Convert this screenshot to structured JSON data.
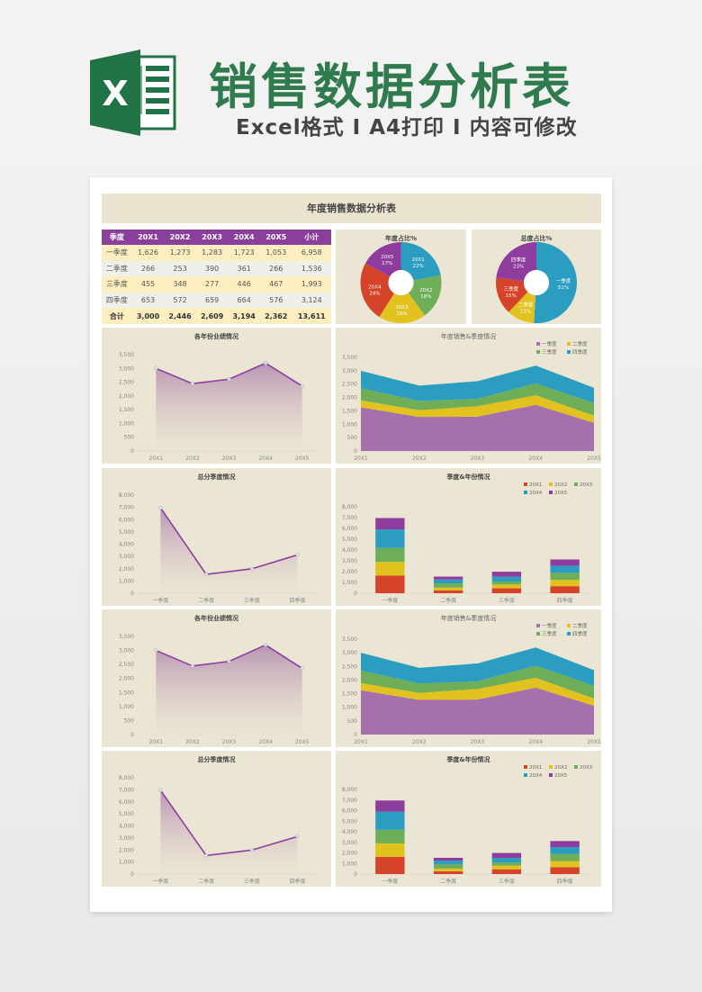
{
  "header": {
    "title": "销售数据分析表",
    "subtitle": "Excel格式 I A4打印 I 内容可修改",
    "logo_letter": "X"
  },
  "sheet_title": "年度销售数据分析表",
  "colors": {
    "brand": "#2f7b4d",
    "header_purple": "#8a3f9c",
    "blue": "#2a9dc0",
    "green": "#6fae58",
    "yellow": "#e2c21f",
    "red": "#d4432a",
    "purple": "#8e3d9e",
    "area_purple": "#a670ac",
    "panel": "#ebe5d3"
  },
  "table": {
    "columns": [
      "季度",
      "20X1",
      "20X2",
      "20X3",
      "20X4",
      "20X5",
      "小计"
    ],
    "rows": [
      [
        "一季度",
        "1,626",
        "1,273",
        "1,283",
        "1,723",
        "1,053",
        "6,958"
      ],
      [
        "二季度",
        "266",
        "253",
        "390",
        "361",
        "266",
        "1,536"
      ],
      [
        "三季度",
        "455",
        "348",
        "277",
        "446",
        "467",
        "1,993"
      ],
      [
        "四季度",
        "653",
        "572",
        "659",
        "664",
        "576",
        "3,124"
      ],
      [
        "合计",
        "3,000",
        "2,446",
        "2,609",
        "3,194",
        "2,362",
        "13,611"
      ]
    ]
  },
  "chart_data": [
    {
      "type": "pie",
      "title": "年度占比%",
      "donut": true,
      "labels": [
        "20X1",
        "20X2",
        "20X3",
        "20X4",
        "20X5"
      ],
      "values": [
        22,
        18,
        19,
        24,
        17
      ],
      "colors": [
        "#2a9dc0",
        "#6fae58",
        "#e2c21f",
        "#d4432a",
        "#8e3d9e"
      ]
    },
    {
      "type": "pie",
      "title": "总度占比%",
      "donut": true,
      "labels": [
        "一季度",
        "二季度",
        "三季度",
        "四季度"
      ],
      "values": [
        51,
        11,
        15,
        23
      ],
      "colors": [
        "#2a9dc0",
        "#e2c21f",
        "#d4432a",
        "#8e3d9e"
      ]
    },
    {
      "type": "line",
      "title": "各年份业绩情况",
      "categories": [
        "20X1",
        "20X2",
        "20X3",
        "20X4",
        "20X5"
      ],
      "values": [
        3000,
        2446,
        2609,
        3194,
        2362
      ],
      "ylim": [
        0,
        3500
      ],
      "ystep": 500,
      "fill": "gradient"
    },
    {
      "type": "area",
      "stacked": true,
      "title": "年度销售&季度情况",
      "categories": [
        "20X1",
        "20X2",
        "20X3",
        "20X4",
        "20X5"
      ],
      "ylim": [
        0,
        3500
      ],
      "ystep": 500,
      "legend": "top-right",
      "series": [
        {
          "name": "一季度",
          "color": "#a670ac",
          "values": [
            1626,
            1273,
            1283,
            1723,
            1053
          ]
        },
        {
          "name": "二季度",
          "color": "#e2c21f",
          "values": [
            266,
            253,
            390,
            361,
            266
          ]
        },
        {
          "name": "三季度",
          "color": "#6fae58",
          "values": [
            455,
            348,
            277,
            446,
            467
          ]
        },
        {
          "name": "四季度",
          "color": "#2a9dc0",
          "values": [
            653,
            572,
            659,
            664,
            576
          ]
        }
      ]
    },
    {
      "type": "line",
      "title": "总分季度情况",
      "categories": [
        "一季度",
        "二季度",
        "三季度",
        "四季度"
      ],
      "values": [
        6958,
        1536,
        1993,
        3124
      ],
      "ylim": [
        0,
        8000
      ],
      "ystep": 1000,
      "fill": "gradient"
    },
    {
      "type": "bar",
      "stacked": true,
      "title": "季度&年份情况",
      "categories": [
        "一季度",
        "二季度",
        "三季度",
        "四季度"
      ],
      "ylim": [
        0,
        8000
      ],
      "ystep": 1000,
      "legend": "top-right",
      "series": [
        {
          "name": "20X1",
          "color": "#d4432a",
          "values": [
            1626,
            266,
            455,
            653
          ]
        },
        {
          "name": "20X2",
          "color": "#e2c21f",
          "values": [
            1273,
            253,
            348,
            572
          ]
        },
        {
          "name": "20X3",
          "color": "#6fae58",
          "values": [
            1283,
            390,
            277,
            659
          ]
        },
        {
          "name": "20X4",
          "color": "#2a9dc0",
          "values": [
            1723,
            361,
            446,
            664
          ]
        },
        {
          "name": "20X5",
          "color": "#8e3d9e",
          "values": [
            1053,
            266,
            467,
            576
          ]
        }
      ]
    },
    {
      "type": "line",
      "title": "各年份业绩情况",
      "categories": [
        "20X1",
        "20X2",
        "20X3",
        "20X4",
        "20X5"
      ],
      "values": [
        3000,
        2446,
        2609,
        3194,
        2362
      ],
      "ylim": [
        0,
        3500
      ],
      "ystep": 500,
      "fill": "gradient"
    },
    {
      "type": "area",
      "stacked": true,
      "title": "年度销售&季度情况",
      "categories": [
        "20X1",
        "20X2",
        "20X3",
        "20X4",
        "20X5"
      ],
      "ylim": [
        0,
        3500
      ],
      "ystep": 500,
      "legend": "top-right",
      "series": [
        {
          "name": "一季度",
          "color": "#a670ac",
          "values": [
            1626,
            1273,
            1283,
            1723,
            1053
          ]
        },
        {
          "name": "二季度",
          "color": "#e2c21f",
          "values": [
            266,
            253,
            390,
            361,
            266
          ]
        },
        {
          "name": "三季度",
          "color": "#6fae58",
          "values": [
            455,
            348,
            277,
            446,
            467
          ]
        },
        {
          "name": "四季度",
          "color": "#2a9dc0",
          "values": [
            653,
            572,
            659,
            664,
            576
          ]
        }
      ]
    },
    {
      "type": "line",
      "title": "总分季度情况",
      "categories": [
        "一季度",
        "二季度",
        "三季度",
        "四季度"
      ],
      "values": [
        6958,
        1536,
        1993,
        3124
      ],
      "ylim": [
        0,
        8000
      ],
      "ystep": 1000,
      "fill": "gradient"
    },
    {
      "type": "bar",
      "stacked": true,
      "title": "季度&年份情况",
      "categories": [
        "一季度",
        "二季度",
        "三季度",
        "四季度"
      ],
      "ylim": [
        0,
        8000
      ],
      "ystep": 1000,
      "legend": "top-right",
      "series": [
        {
          "name": "20X1",
          "color": "#d4432a",
          "values": [
            1626,
            266,
            455,
            653
          ]
        },
        {
          "name": "20X2",
          "color": "#e2c21f",
          "values": [
            1273,
            253,
            348,
            572
          ]
        },
        {
          "name": "20X3",
          "color": "#6fae58",
          "values": [
            1283,
            390,
            277,
            659
          ]
        },
        {
          "name": "20X4",
          "color": "#2a9dc0",
          "values": [
            1723,
            361,
            446,
            664
          ]
        },
        {
          "name": "20X5",
          "color": "#8e3d9e",
          "values": [
            1053,
            266,
            467,
            576
          ]
        }
      ]
    }
  ]
}
